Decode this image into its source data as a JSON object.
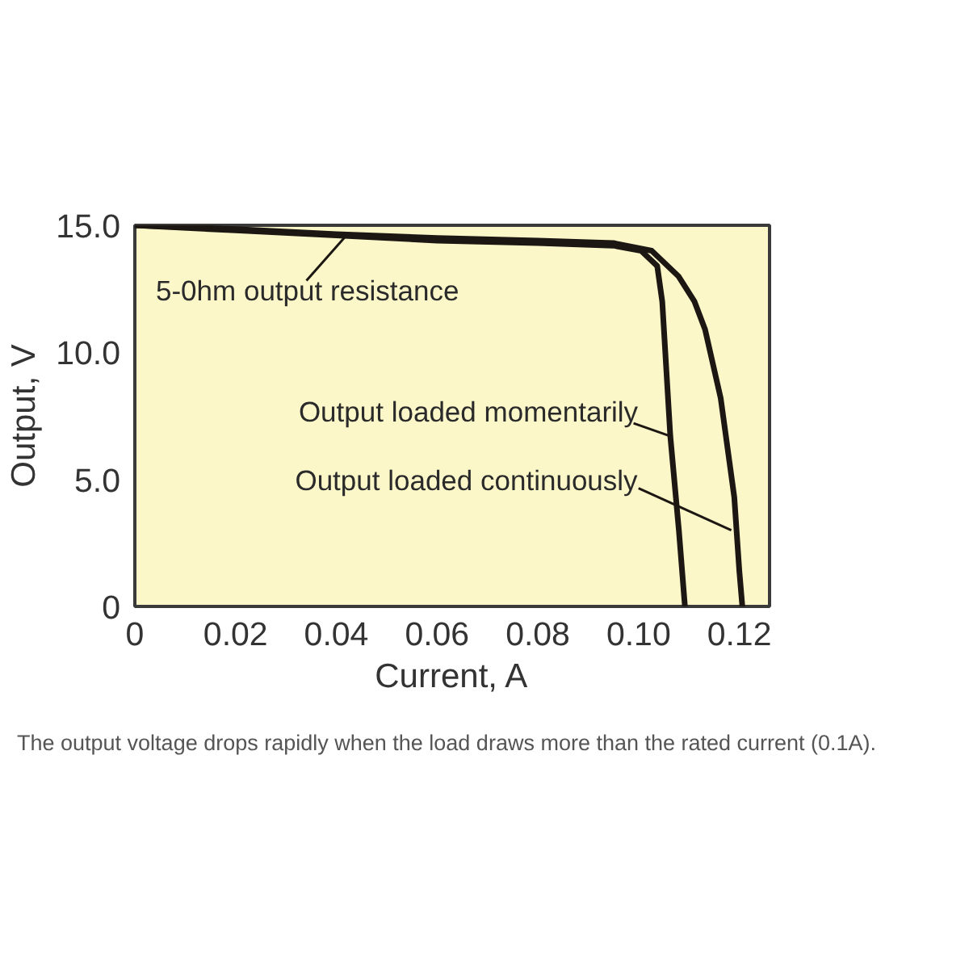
{
  "chart_data": {
    "type": "line",
    "xlabel": "Current, A",
    "ylabel": "Output, V",
    "xlim": [
      0,
      0.126
    ],
    "ylim": [
      0,
      15
    ],
    "xticks": [
      0,
      0.02,
      0.04,
      0.06,
      0.08,
      {
        "value": 0.1,
        "label": "0.10"
      },
      0.12
    ],
    "yticks": [
      0,
      {
        "value": 5,
        "label": "5.0"
      },
      {
        "value": 10,
        "label": "10.0"
      },
      {
        "value": 15,
        "label": "15.0"
      }
    ],
    "line_style": "solid",
    "series": [
      {
        "color": "#1c1712",
        "x": [
          0,
          0.02,
          0.04,
          0.06,
          0.08,
          0.095,
          0.1005,
          0.1037,
          0.1047,
          0.1063,
          0.108,
          0.1092
        ],
        "values": [
          15.0,
          14.8,
          14.6,
          14.4,
          14.3,
          14.2,
          14.0,
          13.4,
          12.0,
          6.7,
          3.0,
          0
        ]
      },
      {
        "color": "#1c1712",
        "x": [
          0,
          0.02,
          0.04,
          0.06,
          0.08,
          0.095,
          0.1026,
          0.1079,
          0.1111,
          0.1132,
          0.1163,
          0.119,
          0.12,
          0.1206
        ],
        "values": [
          15.0,
          14.85,
          14.65,
          14.5,
          14.4,
          14.3,
          14.0,
          13.0,
          12.0,
          10.9,
          8.2,
          4.3,
          1.4,
          0
        ]
      }
    ],
    "annotations": [
      {
        "text": "5-0hm output resistance",
        "x": 0.042,
        "y": 14.6
      },
      {
        "text": "Output loaded momentarily",
        "x": 0.1063,
        "y": 6.7
      },
      {
        "text": "Output loaded continuously",
        "x": 0.1184,
        "y": 3.0
      },
      "The output voltage drops rapidly when the load draws more than the rated current (0.1A)."
    ]
  }
}
